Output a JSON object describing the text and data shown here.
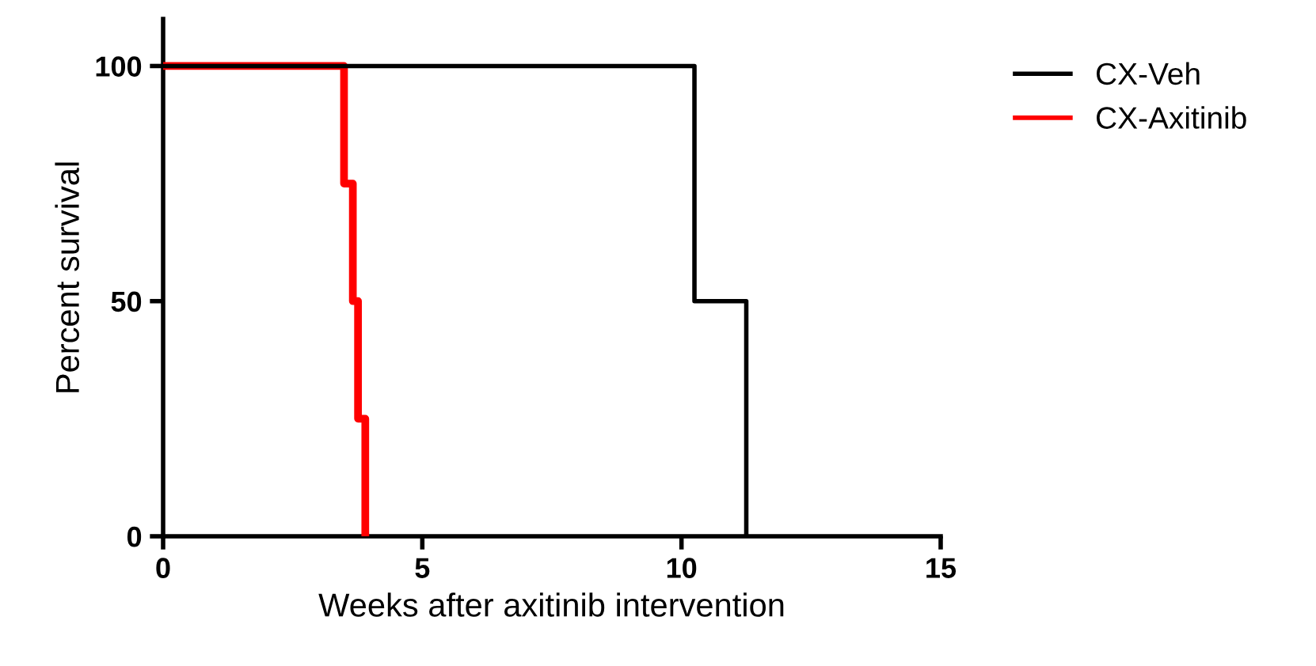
{
  "chart_data": {
    "type": "step",
    "xlabel": "Weeks after axitinib intervention",
    "ylabel": "Percent survival",
    "xlim": [
      0,
      15
    ],
    "xticks": [
      0,
      5,
      10,
      15
    ],
    "ylim": [
      0,
      110
    ],
    "yticks": [
      0,
      50,
      100
    ],
    "grid": false,
    "legend": "top right",
    "marker": "none",
    "line_style": "solid",
    "series": [
      {
        "name": "CX-Veh",
        "color": "#000000",
        "x": [
          0,
          10.25,
          11.25
        ],
        "values": [
          100,
          50,
          0
        ]
      },
      {
        "name": "CX-Axitinib",
        "color": "#ff0000",
        "x": [
          0,
          3.49,
          3.66,
          3.76,
          3.9
        ],
        "values": [
          100,
          75,
          50,
          25,
          0
        ]
      }
    ]
  }
}
